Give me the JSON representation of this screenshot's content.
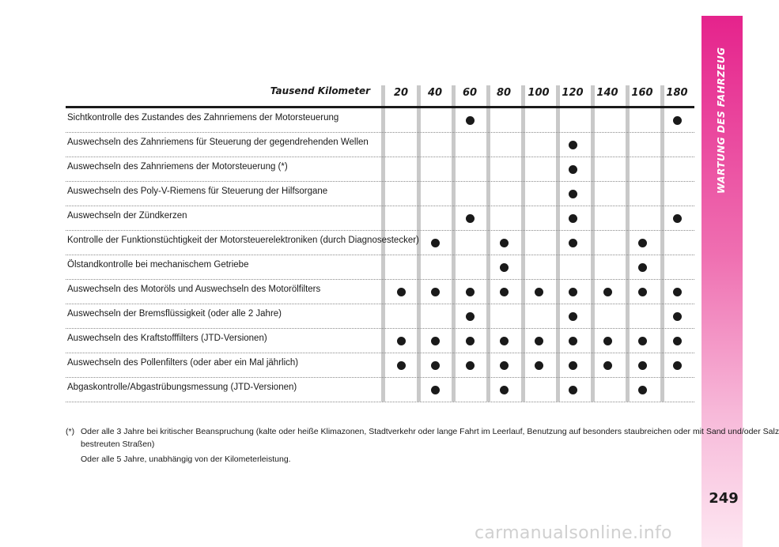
{
  "header": {
    "section_title": "WARTUNG DES FAHRZEUG",
    "page_number": "249"
  },
  "table": {
    "km_label": "Tausend Kilometer",
    "columns": [
      "20",
      "40",
      "60",
      "80",
      "100",
      "120",
      "140",
      "160",
      "180"
    ],
    "rows": [
      {
        "label": "Sichtkontrolle des Zustandes des Zahnriemens der Motorsteuerung",
        "marks": [
          false,
          false,
          true,
          false,
          false,
          false,
          false,
          false,
          true
        ]
      },
      {
        "label": "Auswechseln des Zahnriemens für Steuerung der gegendrehenden Wellen",
        "marks": [
          false,
          false,
          false,
          false,
          false,
          true,
          false,
          false,
          false
        ]
      },
      {
        "label": "Auswechseln des Zahnriemens der Motorsteuerung (*)",
        "marks": [
          false,
          false,
          false,
          false,
          false,
          true,
          false,
          false,
          false
        ]
      },
      {
        "label": "Auswechseln des Poly-V-Riemens für Steuerung der Hilfsorgane",
        "marks": [
          false,
          false,
          false,
          false,
          false,
          true,
          false,
          false,
          false
        ]
      },
      {
        "label": "Auswechseln der Zündkerzen",
        "marks": [
          false,
          false,
          true,
          false,
          false,
          true,
          false,
          false,
          true
        ]
      },
      {
        "label": "Kontrolle der Funktionstüchtigkeit der Motorsteuerelektroniken (durch Diagnosestecker)",
        "marks": [
          false,
          true,
          false,
          true,
          false,
          true,
          false,
          true,
          false
        ]
      },
      {
        "label": "Ölstandkontrolle bei mechanischem Getriebe",
        "marks": [
          false,
          false,
          false,
          true,
          false,
          false,
          false,
          true,
          false
        ]
      },
      {
        "label": "Auswechseln des Motoröls und Auswechseln des Motorölfilters",
        "marks": [
          true,
          true,
          true,
          true,
          true,
          true,
          true,
          true,
          true
        ]
      },
      {
        "label": "Auswechseln der Bremsflüssigkeit (oder alle 2 Jahre)",
        "marks": [
          false,
          false,
          true,
          false,
          false,
          true,
          false,
          false,
          true
        ]
      },
      {
        "label": "Auswechseln des Kraftstofffilters (JTD-Versionen)",
        "marks": [
          true,
          true,
          true,
          true,
          true,
          true,
          true,
          true,
          true
        ]
      },
      {
        "label": "Auswechseln des Pollenfilters (oder aber ein Mal jährlich)",
        "marks": [
          true,
          true,
          true,
          true,
          true,
          true,
          true,
          true,
          true
        ]
      },
      {
        "label": "Abgaskontrolle/Abgastrübungsmessung (JTD-Versionen)",
        "marks": [
          false,
          true,
          false,
          true,
          false,
          true,
          false,
          true,
          false
        ]
      }
    ]
  },
  "footnote": {
    "marker": "(*)",
    "line1": "Oder alle 3 Jahre bei kritischer Beanspruchung (kalte oder heiße Klimazonen, Stadtverkehr oder lange Fahrt im Leerlauf, Benutzung auf besonders staubreichen oder mit Sand und/oder Salz",
    "line2": "bestreuten Straßen)",
    "line3": "Oder alle 5 Jahre, unabhängig von der Kilometerleistung."
  },
  "watermark": "carmanualsonline.info",
  "colors": {
    "accent": "#e5238c",
    "grid_bar": "#c9c9c9"
  }
}
